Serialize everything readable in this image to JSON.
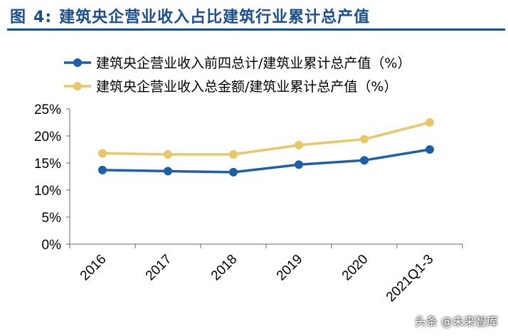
{
  "figure": {
    "label": "图",
    "number": "4:",
    "title": "建筑央企营业收入占比建筑行业累计总产值"
  },
  "watermark": "头条 @未来智库",
  "colors": {
    "series1": "#1f5fa6",
    "series2": "#e8c66a",
    "axis": "#666666",
    "title": "#1a4e8c"
  },
  "chart_data": {
    "type": "line",
    "categories": [
      "2016",
      "2017",
      "2018",
      "2019",
      "2020",
      "2021Q1-3"
    ],
    "series": [
      {
        "name": "建筑央企营业收入前四总计/建筑业累计总产值（%）",
        "values": [
          13.7,
          13.5,
          13.3,
          14.7,
          15.5,
          17.5
        ]
      },
      {
        "name": "建筑央企营业收入总金额/建筑业累计总产值（%）",
        "values": [
          16.8,
          16.6,
          16.6,
          18.3,
          19.4,
          22.5
        ]
      }
    ],
    "yticks": [
      "0%",
      "5%",
      "10%",
      "15%",
      "20%",
      "25%"
    ],
    "ylim": [
      0,
      25
    ],
    "legend_position": "top-left",
    "grid": false
  }
}
